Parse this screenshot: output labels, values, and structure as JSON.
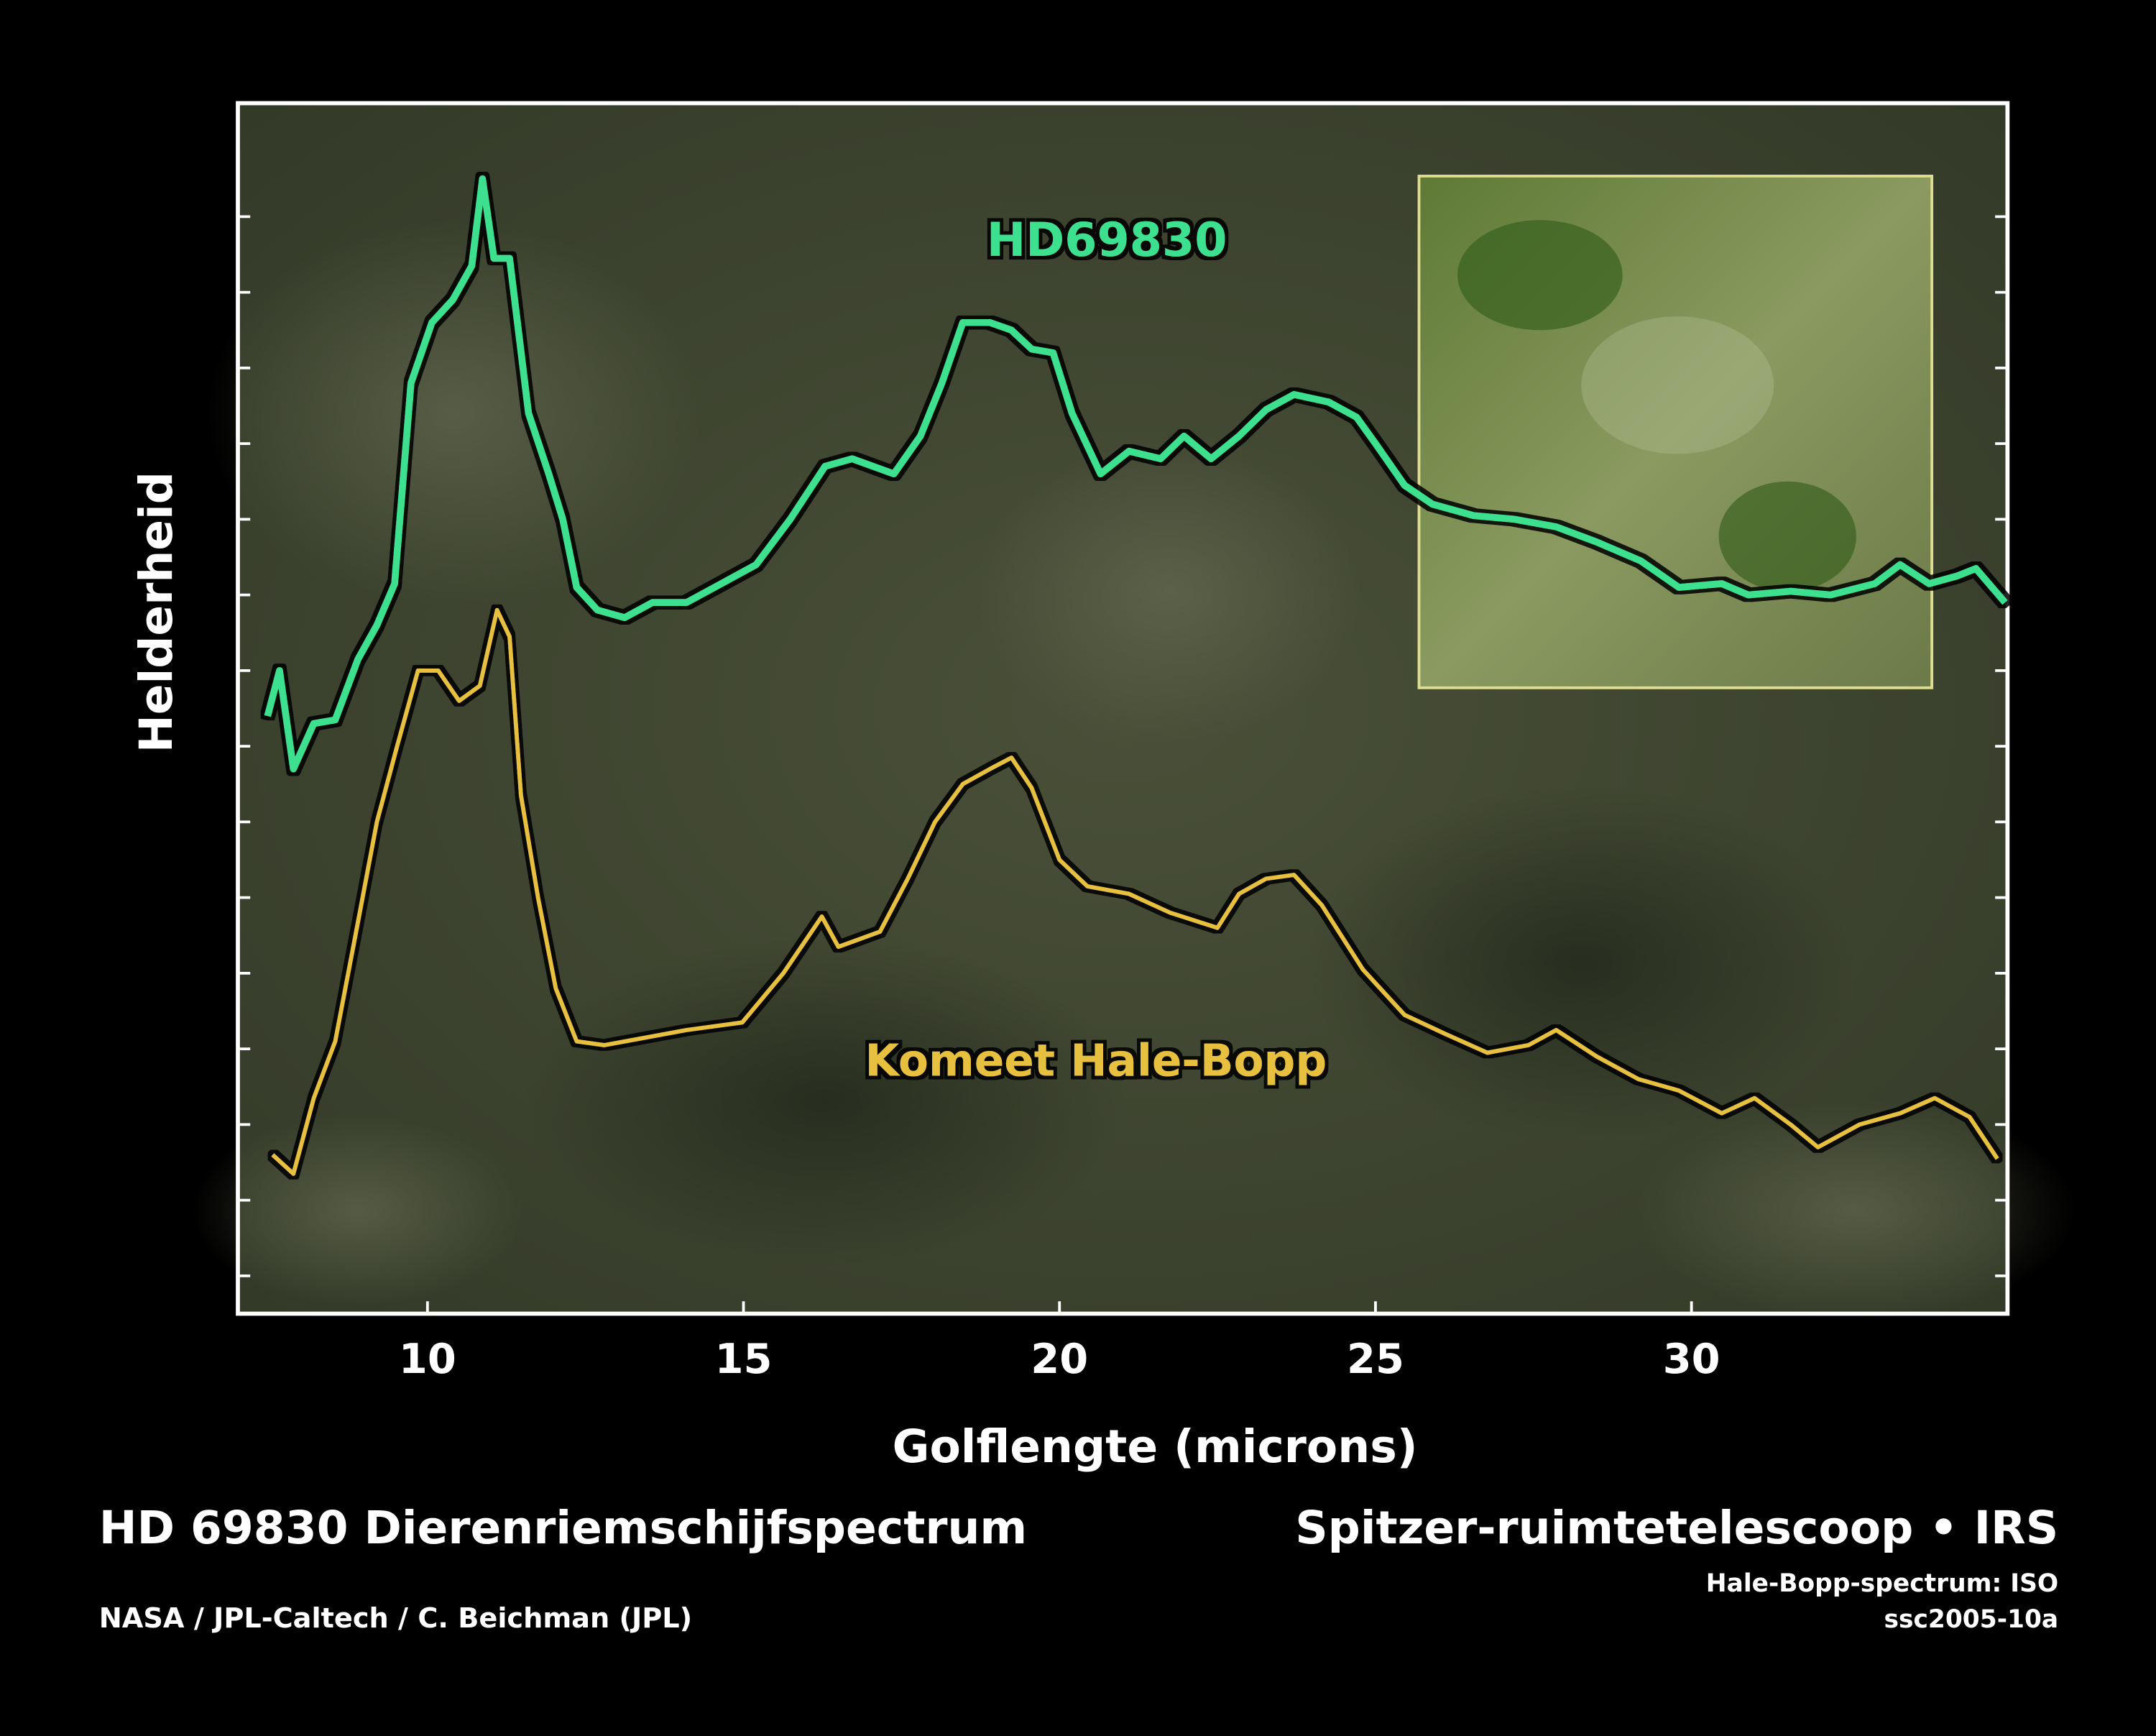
{
  "chart_data": {
    "type": "line",
    "title": "HD 69830 Dierenriemschijfspectrum",
    "subtitle": "Spitzer-ruimtetelescoop • IRS",
    "notes": [
      "Hale-Bopp-spectrum: ISO",
      "ssc2005-10a"
    ],
    "credit": "NASA / JPL-Caltech / C. Beichman (JPL)",
    "x_label": "Golflengte (microns)",
    "y_label": "Helderheid",
    "xlim": [
      7,
      35
    ],
    "xticks": [
      10,
      15,
      20,
      25,
      30
    ],
    "ylim": [
      -0.5,
      15.5
    ],
    "yticks": [
      0,
      1,
      2,
      3,
      4,
      5,
      6,
      7,
      8,
      9,
      10,
      11,
      12,
      13,
      14
    ],
    "series": [
      {
        "name": "HD69830",
        "color": "#3de08f",
        "x": [
          7.47,
          7.66,
          7.88,
          8.2,
          8.54,
          8.9,
          9.2,
          9.48,
          9.74,
          10.07,
          10.4,
          10.7,
          10.87,
          11.05,
          11.3,
          11.6,
          11.92,
          12.14,
          12.36,
          12.69,
          13.12,
          13.56,
          14.1,
          14.65,
          15.2,
          15.74,
          16.29,
          16.72,
          17.38,
          17.8,
          18.14,
          18.47,
          18.9,
          19.24,
          19.56,
          19.9,
          20.2,
          20.65,
          21.1,
          21.6,
          21.97,
          22.4,
          22.84,
          23.27,
          23.71,
          24.26,
          24.7,
          25.0,
          25.46,
          25.9,
          26.55,
          27.2,
          27.86,
          28.5,
          29.2,
          29.8,
          30.48,
          30.9,
          31.57,
          32.2,
          32.9,
          33.3,
          33.76,
          34.2,
          34.5,
          34.96
        ],
        "values": [
          7.4,
          8.0,
          6.7,
          7.3,
          7.35,
          8.15,
          8.6,
          9.15,
          11.8,
          12.6,
          12.9,
          13.35,
          14.5,
          13.45,
          13.45,
          11.4,
          10.6,
          10.0,
          9.1,
          8.8,
          8.7,
          8.9,
          8.9,
          9.15,
          9.4,
          10.0,
          10.7,
          10.8,
          10.6,
          11.1,
          11.8,
          12.6,
          12.6,
          12.5,
          12.25,
          12.2,
          11.4,
          10.6,
          10.9,
          10.8,
          11.1,
          10.8,
          11.1,
          11.45,
          11.65,
          11.55,
          11.35,
          11.0,
          10.45,
          10.2,
          10.05,
          10.0,
          9.9,
          9.7,
          9.45,
          9.1,
          9.15,
          9.0,
          9.05,
          9.0,
          9.15,
          9.4,
          9.15,
          9.25,
          9.35,
          8.9
        ]
      },
      {
        "name": "Komeet Hale-Bopp",
        "color": "#e8c040",
        "x": [
          7.55,
          7.88,
          8.2,
          8.54,
          8.86,
          9.2,
          9.52,
          9.85,
          10.17,
          10.5,
          10.83,
          11.1,
          11.3,
          11.48,
          11.75,
          12.03,
          12.36,
          12.8,
          13.45,
          14.1,
          14.98,
          15.63,
          16.24,
          16.5,
          17.16,
          17.6,
          18.03,
          18.47,
          18.9,
          19.24,
          19.56,
          20.0,
          20.44,
          21.1,
          21.75,
          22.5,
          22.84,
          23.27,
          23.71,
          24.15,
          24.8,
          25.46,
          26.1,
          26.77,
          27.42,
          27.86,
          28.5,
          29.16,
          29.8,
          30.48,
          31.0,
          31.57,
          32.0,
          32.66,
          33.3,
          33.85,
          34.4,
          34.84
        ],
        "values": [
          1.6,
          1.35,
          2.35,
          3.1,
          4.5,
          6.0,
          7.0,
          8.0,
          8.0,
          7.6,
          7.8,
          8.8,
          8.45,
          6.35,
          5.0,
          3.8,
          3.1,
          3.05,
          3.15,
          3.25,
          3.35,
          4.0,
          4.75,
          4.35,
          4.55,
          5.25,
          6.0,
          6.5,
          6.7,
          6.85,
          6.45,
          5.5,
          5.15,
          5.05,
          4.8,
          4.6,
          5.05,
          5.25,
          5.3,
          4.9,
          4.05,
          3.45,
          3.2,
          2.95,
          3.05,
          3.25,
          2.9,
          2.6,
          2.45,
          2.15,
          2.35,
          2.0,
          1.7,
          2.0,
          2.15,
          2.35,
          2.1,
          1.55
        ]
      }
    ]
  }
}
